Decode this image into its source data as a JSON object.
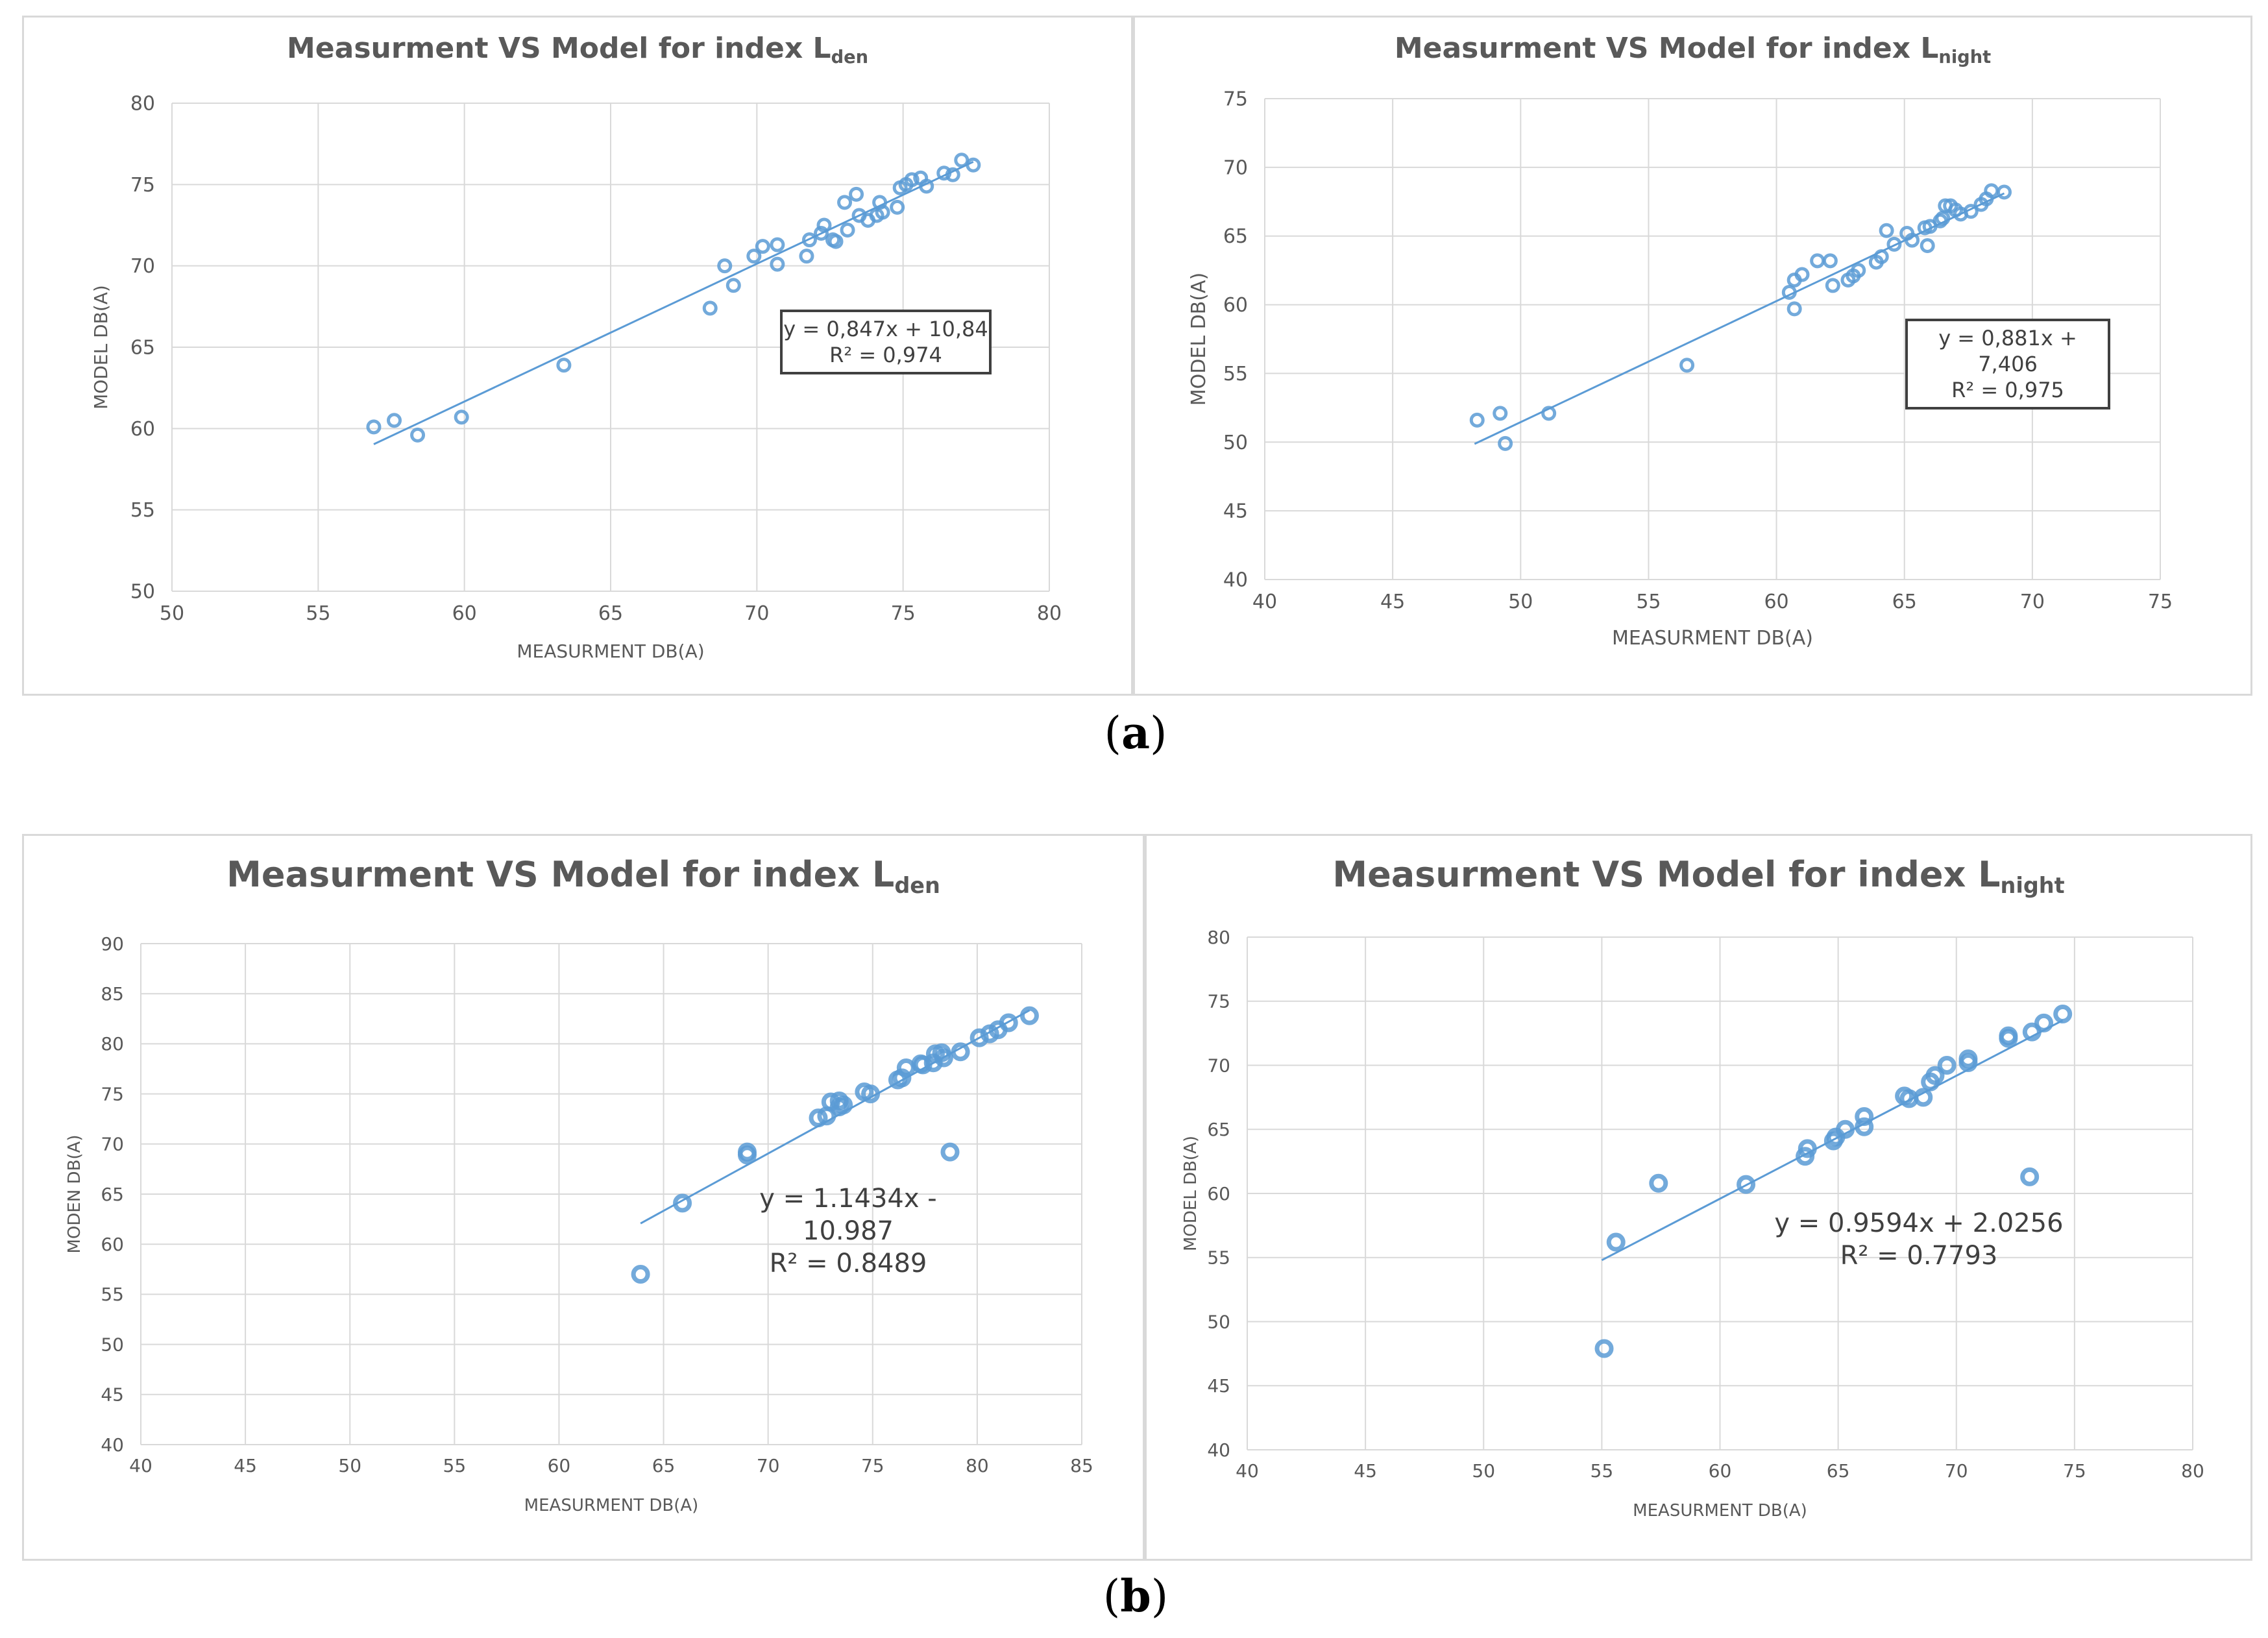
{
  "colors": {
    "marker": "#5b9bd5",
    "trend": "#5b9bd5",
    "grid": "#d9d9d9",
    "text": "#595959"
  },
  "captions": {
    "a": "(a)",
    "b": "(b)",
    "a_letter": "a",
    "b_letter": "b"
  },
  "chart_data": [
    {
      "type": "scatter",
      "title_main": "Measurment VS Model for index L",
      "title_sub": "den",
      "xlabel": "MEASURMENT DB(A)",
      "ylabel": "MODEL DB(A)",
      "xlim": [
        50,
        80
      ],
      "ylim": [
        50,
        80
      ],
      "xstep": 5,
      "ystep": 5,
      "trend": {
        "slope": 0.847,
        "intercept": 10.84,
        "x_range": [
          56.9,
          77.4
        ]
      },
      "equation": "y = 0,847x + 10,84",
      "r2": "R² = 0,974",
      "points": [
        [
          56.9,
          60.1
        ],
        [
          57.6,
          60.5
        ],
        [
          58.4,
          59.6
        ],
        [
          59.9,
          60.7
        ],
        [
          63.4,
          63.9
        ],
        [
          68.4,
          67.4
        ],
        [
          68.9,
          70.0
        ],
        [
          69.2,
          68.8
        ],
        [
          69.9,
          70.6
        ],
        [
          70.2,
          71.2
        ],
        [
          70.7,
          70.1
        ],
        [
          70.7,
          71.3
        ],
        [
          71.7,
          70.6
        ],
        [
          71.8,
          71.6
        ],
        [
          72.2,
          72.0
        ],
        [
          72.3,
          72.5
        ],
        [
          72.6,
          71.6
        ],
        [
          72.7,
          71.5
        ],
        [
          73.0,
          73.9
        ],
        [
          73.1,
          72.2
        ],
        [
          73.4,
          74.4
        ],
        [
          73.5,
          73.1
        ],
        [
          73.8,
          72.8
        ],
        [
          74.1,
          73.1
        ],
        [
          74.2,
          73.9
        ],
        [
          74.3,
          73.3
        ],
        [
          74.8,
          73.6
        ],
        [
          74.9,
          74.8
        ],
        [
          75.1,
          75.0
        ],
        [
          75.3,
          75.3
        ],
        [
          75.6,
          75.4
        ],
        [
          75.8,
          74.9
        ],
        [
          76.4,
          75.7
        ],
        [
          76.7,
          75.6
        ],
        [
          77.0,
          76.5
        ],
        [
          77.4,
          76.2
        ]
      ]
    },
    {
      "type": "scatter",
      "title_main": "Measurment VS Model for index L",
      "title_sub": "night",
      "xlabel": "MEASURMENT DB(A)",
      "ylabel": "MODEL DB(A)",
      "xlim": [
        40,
        75
      ],
      "ylim": [
        40,
        75
      ],
      "xstep": 5,
      "ystep": 5,
      "trend": {
        "slope": 0.881,
        "intercept": 7.406,
        "x_range": [
          48.2,
          68.9
        ]
      },
      "equation": "y = 0,881x + 7,406",
      "r2": "R² = 0,975",
      "points": [
        [
          48.3,
          51.6
        ],
        [
          49.2,
          52.1
        ],
        [
          49.4,
          49.9
        ],
        [
          51.1,
          52.1
        ],
        [
          56.5,
          55.6
        ],
        [
          60.5,
          60.9
        ],
        [
          60.7,
          61.8
        ],
        [
          60.7,
          59.7
        ],
        [
          61.0,
          62.2
        ],
        [
          61.6,
          63.2
        ],
        [
          62.1,
          63.2
        ],
        [
          62.2,
          61.4
        ],
        [
          62.8,
          61.8
        ],
        [
          63.0,
          62.1
        ],
        [
          63.2,
          62.5
        ],
        [
          63.9,
          63.1
        ],
        [
          64.1,
          63.5
        ],
        [
          64.3,
          65.4
        ],
        [
          64.6,
          64.4
        ],
        [
          65.1,
          65.2
        ],
        [
          65.3,
          64.7
        ],
        [
          65.8,
          65.6
        ],
        [
          65.9,
          64.3
        ],
        [
          66.0,
          65.7
        ],
        [
          66.4,
          66.1
        ],
        [
          66.5,
          66.3
        ],
        [
          66.6,
          67.2
        ],
        [
          66.8,
          67.2
        ],
        [
          67.0,
          66.9
        ],
        [
          67.2,
          66.6
        ],
        [
          67.6,
          66.8
        ],
        [
          68.0,
          67.3
        ],
        [
          68.2,
          67.7
        ],
        [
          68.4,
          68.3
        ],
        [
          68.9,
          68.2
        ]
      ]
    },
    {
      "type": "scatter",
      "title_main": "Measurment VS Model for index L",
      "title_sub": "den",
      "xlabel": "MEASURMENT DB(A)",
      "ylabel": "MODEN DB(A)",
      "xlim": [
        40,
        85
      ],
      "ylim": [
        40,
        90
      ],
      "xstep": 5,
      "ystep": 5,
      "trend": {
        "slope": 1.1434,
        "intercept": -10.987,
        "x_range": [
          63.9,
          82.5
        ]
      },
      "equation": "y = 1.1434x - 10.987",
      "r2": "R² = 0.8489",
      "points": [
        [
          63.9,
          57.0
        ],
        [
          65.9,
          64.1
        ],
        [
          69.0,
          68.9
        ],
        [
          69.0,
          69.2
        ],
        [
          72.4,
          72.6
        ],
        [
          72.8,
          72.8
        ],
        [
          73.0,
          74.2
        ],
        [
          73.4,
          73.7
        ],
        [
          73.4,
          74.3
        ],
        [
          73.6,
          73.9
        ],
        [
          74.6,
          75.2
        ],
        [
          74.9,
          75.0
        ],
        [
          76.2,
          76.4
        ],
        [
          76.4,
          76.6
        ],
        [
          76.6,
          77.6
        ],
        [
          77.3,
          78.0
        ],
        [
          77.4,
          77.9
        ],
        [
          77.9,
          78.1
        ],
        [
          78.0,
          79.0
        ],
        [
          78.3,
          79.1
        ],
        [
          78.4,
          78.6
        ],
        [
          78.7,
          69.2
        ],
        [
          79.2,
          79.2
        ],
        [
          80.1,
          80.6
        ],
        [
          80.6,
          81.0
        ],
        [
          81.0,
          81.4
        ],
        [
          81.5,
          82.1
        ],
        [
          82.5,
          82.8
        ]
      ]
    },
    {
      "type": "scatter",
      "title_main": "Measurment VS Model for index L",
      "title_sub": "night",
      "xlabel": "MEASURMENT DB(A)",
      "ylabel": "MODEL DB(A)",
      "xlim": [
        40,
        80
      ],
      "ylim": [
        40,
        80
      ],
      "xstep": 5,
      "ystep": 5,
      "trend": {
        "slope": 0.9594,
        "intercept": 2.0256,
        "x_range": [
          55.0,
          74.5
        ]
      },
      "equation": "y = 0.9594x + 2.0256",
      "r2": "R² = 0.7793",
      "points": [
        [
          55.1,
          47.9
        ],
        [
          55.6,
          56.2
        ],
        [
          57.4,
          60.8
        ],
        [
          61.1,
          60.7
        ],
        [
          63.6,
          62.9
        ],
        [
          63.7,
          63.5
        ],
        [
          64.8,
          64.1
        ],
        [
          64.9,
          64.4
        ],
        [
          65.3,
          65.0
        ],
        [
          66.1,
          65.2
        ],
        [
          66.1,
          66.0
        ],
        [
          67.8,
          67.6
        ],
        [
          68.0,
          67.4
        ],
        [
          68.6,
          67.5
        ],
        [
          68.9,
          68.7
        ],
        [
          69.1,
          69.2
        ],
        [
          69.6,
          70.0
        ],
        [
          70.5,
          70.2
        ],
        [
          70.5,
          70.5
        ],
        [
          72.2,
          72.1
        ],
        [
          72.2,
          72.3
        ],
        [
          73.1,
          61.3
        ],
        [
          73.2,
          72.6
        ],
        [
          73.7,
          73.3
        ],
        [
          74.5,
          74.0
        ]
      ]
    }
  ]
}
